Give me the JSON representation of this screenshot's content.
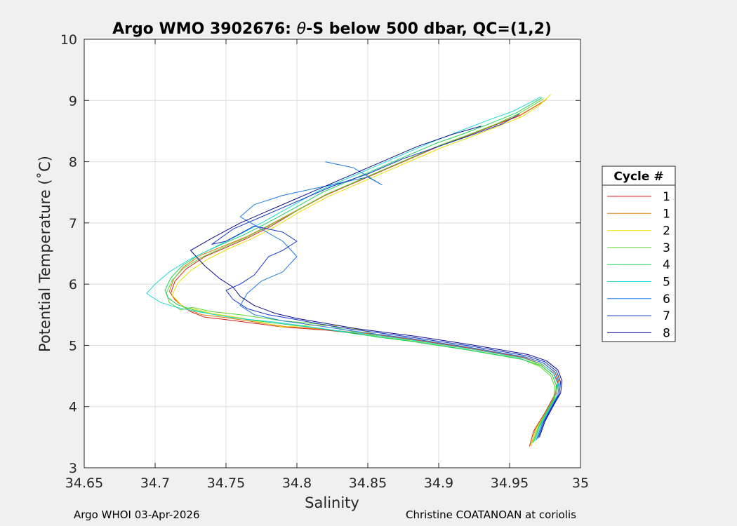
{
  "chart_data": {
    "type": "line",
    "title_prefix": "Argo WMO 3902676: ",
    "title_theta": "θ",
    "title_suffix": "-S below 500 dbar,  QC=(1,2)",
    "xlabel": "Salinity",
    "ylabel": "Potential Temperature (˚C)",
    "xlim": [
      34.65,
      35
    ],
    "ylim": [
      3,
      10
    ],
    "xticks": [
      "34.65",
      "34.7",
      "34.75",
      "34.8",
      "34.85",
      "34.9",
      "34.95",
      "35"
    ],
    "yticks": [
      "3",
      "4",
      "5",
      "6",
      "7",
      "8",
      "9",
      "10"
    ],
    "grid": true,
    "legend_title": "Cycle #",
    "legend_position": "right-outside",
    "series": [
      {
        "name": "1",
        "color": "#d42020",
        "x": [
          34.964,
          34.967,
          34.975,
          34.982,
          34.984,
          34.981,
          34.972,
          34.96,
          34.94,
          34.92,
          34.9,
          34.88,
          34.86,
          34.84,
          34.82,
          34.79,
          34.77,
          34.75,
          34.735,
          34.725,
          34.716,
          34.711,
          34.714,
          34.722,
          34.735,
          34.75,
          34.765,
          34.782,
          34.8,
          34.82,
          34.84,
          34.86,
          34.88,
          34.9,
          34.92,
          34.94,
          34.957,
          34.968,
          34.975
        ],
        "y": [
          3.35,
          3.6,
          3.9,
          4.2,
          4.4,
          4.55,
          4.7,
          4.8,
          4.88,
          4.96,
          5.03,
          5.1,
          5.16,
          5.2,
          5.25,
          5.3,
          5.36,
          5.42,
          5.46,
          5.55,
          5.7,
          5.85,
          6.05,
          6.25,
          6.45,
          6.6,
          6.75,
          6.95,
          7.2,
          7.45,
          7.65,
          7.85,
          8.05,
          8.25,
          8.42,
          8.6,
          8.75,
          8.9,
          9.0
        ]
      },
      {
        "name": "1",
        "color": "#e07a10",
        "x": [
          34.965,
          34.968,
          34.976,
          34.983,
          34.985,
          34.982,
          34.973,
          34.961,
          34.941,
          34.921,
          34.901,
          34.881,
          34.861,
          34.841,
          34.821,
          34.791,
          34.771,
          34.751,
          34.733,
          34.722,
          34.714,
          34.71,
          34.713,
          34.72,
          34.732,
          34.748,
          34.764,
          34.781,
          34.801,
          34.821,
          34.841,
          34.861,
          34.881,
          34.901,
          34.921,
          34.941,
          34.958,
          34.969,
          34.976
        ],
        "y": [
          3.36,
          3.62,
          3.92,
          4.22,
          4.42,
          4.57,
          4.72,
          4.81,
          4.89,
          4.97,
          5.04,
          5.11,
          5.17,
          5.21,
          5.26,
          5.31,
          5.38,
          5.45,
          5.5,
          5.6,
          5.74,
          5.88,
          6.08,
          6.28,
          6.47,
          6.62,
          6.77,
          6.97,
          7.22,
          7.47,
          7.67,
          7.87,
          8.07,
          8.27,
          8.44,
          8.62,
          8.77,
          8.92,
          9.02
        ]
      },
      {
        "name": "2",
        "color": "#e8e000",
        "x": [
          34.965,
          34.969,
          34.977,
          34.982,
          34.983,
          34.98,
          34.972,
          34.96,
          34.94,
          34.92,
          34.9,
          34.88,
          34.86,
          34.845,
          34.83,
          34.81,
          34.79,
          34.76,
          34.74,
          34.73,
          34.72,
          34.712,
          34.716,
          34.725,
          34.738,
          34.752,
          34.767,
          34.784,
          34.802,
          34.822,
          34.842,
          34.862,
          34.882,
          34.902,
          34.922,
          34.942,
          34.958,
          34.97,
          34.979
        ],
        "y": [
          3.38,
          3.65,
          3.95,
          4.15,
          4.35,
          4.52,
          4.68,
          4.79,
          4.87,
          4.95,
          5.02,
          5.09,
          5.15,
          5.25,
          5.32,
          5.33,
          5.3,
          5.45,
          5.52,
          5.58,
          5.62,
          5.82,
          6.02,
          6.22,
          6.42,
          6.58,
          6.73,
          6.93,
          7.18,
          7.43,
          7.63,
          7.83,
          8.03,
          8.23,
          8.4,
          8.58,
          8.73,
          8.9,
          9.1
        ]
      },
      {
        "name": "3",
        "color": "#5cd630",
        "x": [
          34.966,
          34.97,
          34.977,
          34.981,
          34.982,
          34.979,
          34.971,
          34.958,
          34.938,
          34.918,
          34.898,
          34.878,
          34.858,
          34.84,
          34.82,
          34.79,
          34.76,
          34.74,
          34.726,
          34.718,
          34.71,
          34.708,
          34.712,
          34.72,
          34.733,
          34.748,
          34.764,
          34.781,
          34.8,
          34.82,
          34.84,
          34.86,
          34.88,
          34.9,
          34.92,
          34.94,
          34.956,
          34.967,
          34.974
        ],
        "y": [
          3.4,
          3.66,
          3.96,
          4.12,
          4.32,
          4.5,
          4.66,
          4.78,
          4.86,
          4.94,
          5.01,
          5.08,
          5.14,
          5.22,
          5.34,
          5.4,
          5.5,
          5.55,
          5.62,
          5.58,
          5.7,
          5.86,
          6.06,
          6.26,
          6.44,
          6.6,
          6.76,
          6.96,
          7.2,
          7.46,
          7.66,
          7.86,
          8.06,
          8.26,
          8.43,
          8.61,
          8.78,
          8.93,
          9.03
        ]
      },
      {
        "name": "4",
        "color": "#20d060",
        "x": [
          34.967,
          34.971,
          34.978,
          34.982,
          34.983,
          34.98,
          34.972,
          34.959,
          34.939,
          34.919,
          34.899,
          34.879,
          34.859,
          34.838,
          34.815,
          34.79,
          34.765,
          34.742,
          34.727,
          34.716,
          34.709,
          34.707,
          34.711,
          34.719,
          34.731,
          34.746,
          34.762,
          34.779,
          34.798,
          34.818,
          34.838,
          34.858,
          34.878,
          34.898,
          34.918,
          34.938,
          34.955,
          34.966,
          34.973
        ],
        "y": [
          3.42,
          3.68,
          3.98,
          4.14,
          4.34,
          4.52,
          4.67,
          4.77,
          4.85,
          4.93,
          5.0,
          5.07,
          5.13,
          5.2,
          5.28,
          5.35,
          5.42,
          5.5,
          5.58,
          5.66,
          5.78,
          5.9,
          6.1,
          6.3,
          6.48,
          6.64,
          6.8,
          7.0,
          7.24,
          7.5,
          7.7,
          7.9,
          8.1,
          8.3,
          8.46,
          8.64,
          8.8,
          8.95,
          9.05
        ]
      },
      {
        "name": "5",
        "color": "#20d8d8",
        "x": [
          34.968,
          34.972,
          34.979,
          34.983,
          34.984,
          34.981,
          34.973,
          34.96,
          34.94,
          34.92,
          34.9,
          34.88,
          34.86,
          34.835,
          34.81,
          34.785,
          34.755,
          34.73,
          34.715,
          34.704,
          34.697,
          34.694,
          34.7,
          34.71,
          34.724,
          34.74,
          34.757,
          34.775,
          34.795,
          34.815,
          34.835,
          34.855,
          34.875,
          34.895,
          34.915,
          34.935,
          34.952,
          34.964,
          34.972
        ],
        "y": [
          3.44,
          3.7,
          4.0,
          4.16,
          4.36,
          4.54,
          4.69,
          4.79,
          4.87,
          4.95,
          5.02,
          5.09,
          5.15,
          5.22,
          5.3,
          5.38,
          5.45,
          5.55,
          5.62,
          5.7,
          5.8,
          5.85,
          6.0,
          6.2,
          6.4,
          6.58,
          6.78,
          7.0,
          7.26,
          7.52,
          7.72,
          7.92,
          8.12,
          8.32,
          8.5,
          8.68,
          8.82,
          8.96,
          9.06
        ]
      },
      {
        "name": "6",
        "color": "#1e78e0",
        "x": [
          34.969,
          34.973,
          34.98,
          34.984,
          34.985,
          34.982,
          34.974,
          34.961,
          34.941,
          34.921,
          34.901,
          34.881,
          34.861,
          34.838,
          34.815,
          34.79,
          34.77,
          34.76,
          34.765,
          34.775,
          34.79,
          34.8,
          34.79,
          34.775,
          34.76,
          34.77,
          34.79,
          34.81,
          34.83,
          34.85,
          34.86,
          34.84,
          34.82
        ],
        "y": [
          3.46,
          3.72,
          4.02,
          4.18,
          4.38,
          4.56,
          4.71,
          4.81,
          4.89,
          4.97,
          5.04,
          5.11,
          5.17,
          5.24,
          5.32,
          5.4,
          5.5,
          5.65,
          5.85,
          6.05,
          6.2,
          6.45,
          6.7,
          6.9,
          7.1,
          7.3,
          7.45,
          7.55,
          7.65,
          7.75,
          7.62,
          7.9,
          8.0
        ]
      },
      {
        "name": "7",
        "color": "#1030c8",
        "x": [
          34.97,
          34.974,
          34.981,
          34.985,
          34.986,
          34.983,
          34.975,
          34.962,
          34.942,
          34.922,
          34.902,
          34.882,
          34.862,
          34.84,
          34.818,
          34.8,
          34.78,
          34.765,
          34.755,
          34.75,
          34.76,
          34.77,
          34.775,
          34.78,
          34.79,
          34.8,
          34.79,
          34.77,
          34.75,
          34.74,
          34.755,
          34.78,
          34.8,
          34.825,
          34.85,
          34.875,
          34.9,
          34.925,
          34.945,
          34.957
        ],
        "y": [
          3.48,
          3.74,
          4.04,
          4.2,
          4.4,
          4.58,
          4.73,
          4.83,
          4.91,
          4.99,
          5.06,
          5.13,
          5.19,
          5.26,
          5.34,
          5.42,
          5.5,
          5.6,
          5.75,
          5.9,
          6.0,
          6.15,
          6.3,
          6.45,
          6.55,
          6.7,
          6.85,
          6.95,
          6.7,
          6.65,
          6.9,
          7.15,
          7.35,
          7.6,
          7.8,
          8.05,
          8.25,
          8.45,
          8.62,
          8.78
        ]
      },
      {
        "name": "8",
        "color": "#0a0a8c",
        "x": [
          34.971,
          34.975,
          34.982,
          34.986,
          34.987,
          34.984,
          34.976,
          34.963,
          34.943,
          34.923,
          34.903,
          34.883,
          34.863,
          34.843,
          34.82,
          34.8,
          34.785,
          34.77,
          34.76,
          34.755,
          34.745,
          34.735,
          34.725,
          34.74,
          34.76,
          34.785,
          34.81,
          34.835,
          34.86,
          34.885,
          34.91,
          34.93
        ],
        "y": [
          3.5,
          3.76,
          4.06,
          4.22,
          4.42,
          4.6,
          4.75,
          4.85,
          4.93,
          5.01,
          5.08,
          5.15,
          5.21,
          5.27,
          5.36,
          5.44,
          5.52,
          5.65,
          5.8,
          5.95,
          6.1,
          6.3,
          6.55,
          6.75,
          7.0,
          7.25,
          7.5,
          7.75,
          8.0,
          8.25,
          8.45,
          8.58
        ]
      }
    ]
  },
  "footer": {
    "left": "Argo WHOI 03-Apr-2026",
    "right": "Christine COATANOAN at coriolis"
  }
}
